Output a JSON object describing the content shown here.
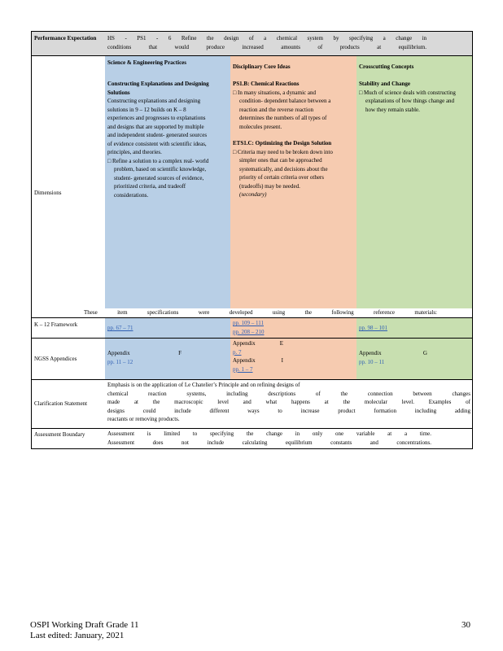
{
  "performance_expectation": {
    "label": "Performance Expectation",
    "text_line1": "HS - PS1 - 6 Refine the design of a chemical system by specifying a change in",
    "text_line2": "conditions that would produce increased amounts of products at equilibrium."
  },
  "headers": {
    "sep": "Science & Engineering Practices",
    "dci": "Disciplinary Core Ideas",
    "ccc": "Crosscutting Concepts"
  },
  "dimensions": {
    "label": "Dimensions",
    "sep": {
      "title": "Constructing Explanations and Designing Solutions",
      "body": "Constructing explanations and designing solutions in 9 – 12 builds on K – 8 experiences and progresses to explanations and designs that are supported by multiple and independent student- generated sources of evidence consistent with scientific ideas, principles, and theories.",
      "bullet": "Refine a solution to a complex real- world problem, based on scientific knowledge, student- generated sources of evidence, prioritized criteria, and tradeoff considerations."
    },
    "dci": {
      "title1": "PS1.B: Chemical Reactions",
      "bullet1": "In many situations, a dynamic and condition- dependent balance between a reaction and the reverse reaction determines the numbers of all types of molecules present.",
      "title2": "ETS1.C: Optimizing the Design Solution",
      "bullet2": "Criteria may need to be broken down into simpler ones that can be approached systematically, and decisions about the priority of certain criteria over others (tradeoffs) may be needed.",
      "secondary": "(secondary)"
    },
    "ccc": {
      "title": "Stability and Change",
      "bullet": "Much of science deals with constructing explanations of how things change and how they remain stable."
    }
  },
  "reference_note": "These item specifications were developed using the following reference materials:",
  "k12_framework": {
    "label": "K – 12 Framework",
    "sep": "pp. 67 – 71",
    "dci1": "pp. 109 – 111",
    "dci2": "pp. 208 – 210",
    "ccc": "pp. 98 – 101"
  },
  "ngss_appendices": {
    "label": "NGSS Appendices",
    "sep_name": "Appendix F",
    "sep_pages": "pp. 11 – 12",
    "dci_name1": "Appendix E",
    "dci_pages1": "p. 7",
    "dci_name2": "Appendix I",
    "dci_pages2": "pp. 1 – 7",
    "ccc_name": "Appendix G",
    "ccc_pages": "pp. 10 – 11"
  },
  "clarification": {
    "label": "Clarification Statement",
    "line1": "Emphasis is on the application of Le Chatelier’s Principle and on refining designs of",
    "line2": "chemical reaction systems, including descriptions of the connection between changes",
    "line3": "made at the macroscopic level and what happens at the molecular level. Examples of",
    "line4": "designs could include different ways to increase product formation including adding",
    "line5": "reactants or removing products."
  },
  "assessment_boundary": {
    "label": "Assessment Boundary",
    "line1": "Assessment is limited to specifying the change in only one variable at a time.",
    "line2": "Assessment does not include calculating equilibrium constants and concentrations."
  },
  "footer": {
    "title": "OSPI Working Draft Grade 11",
    "edited": "Last edited: January, 2021",
    "page": "30"
  }
}
